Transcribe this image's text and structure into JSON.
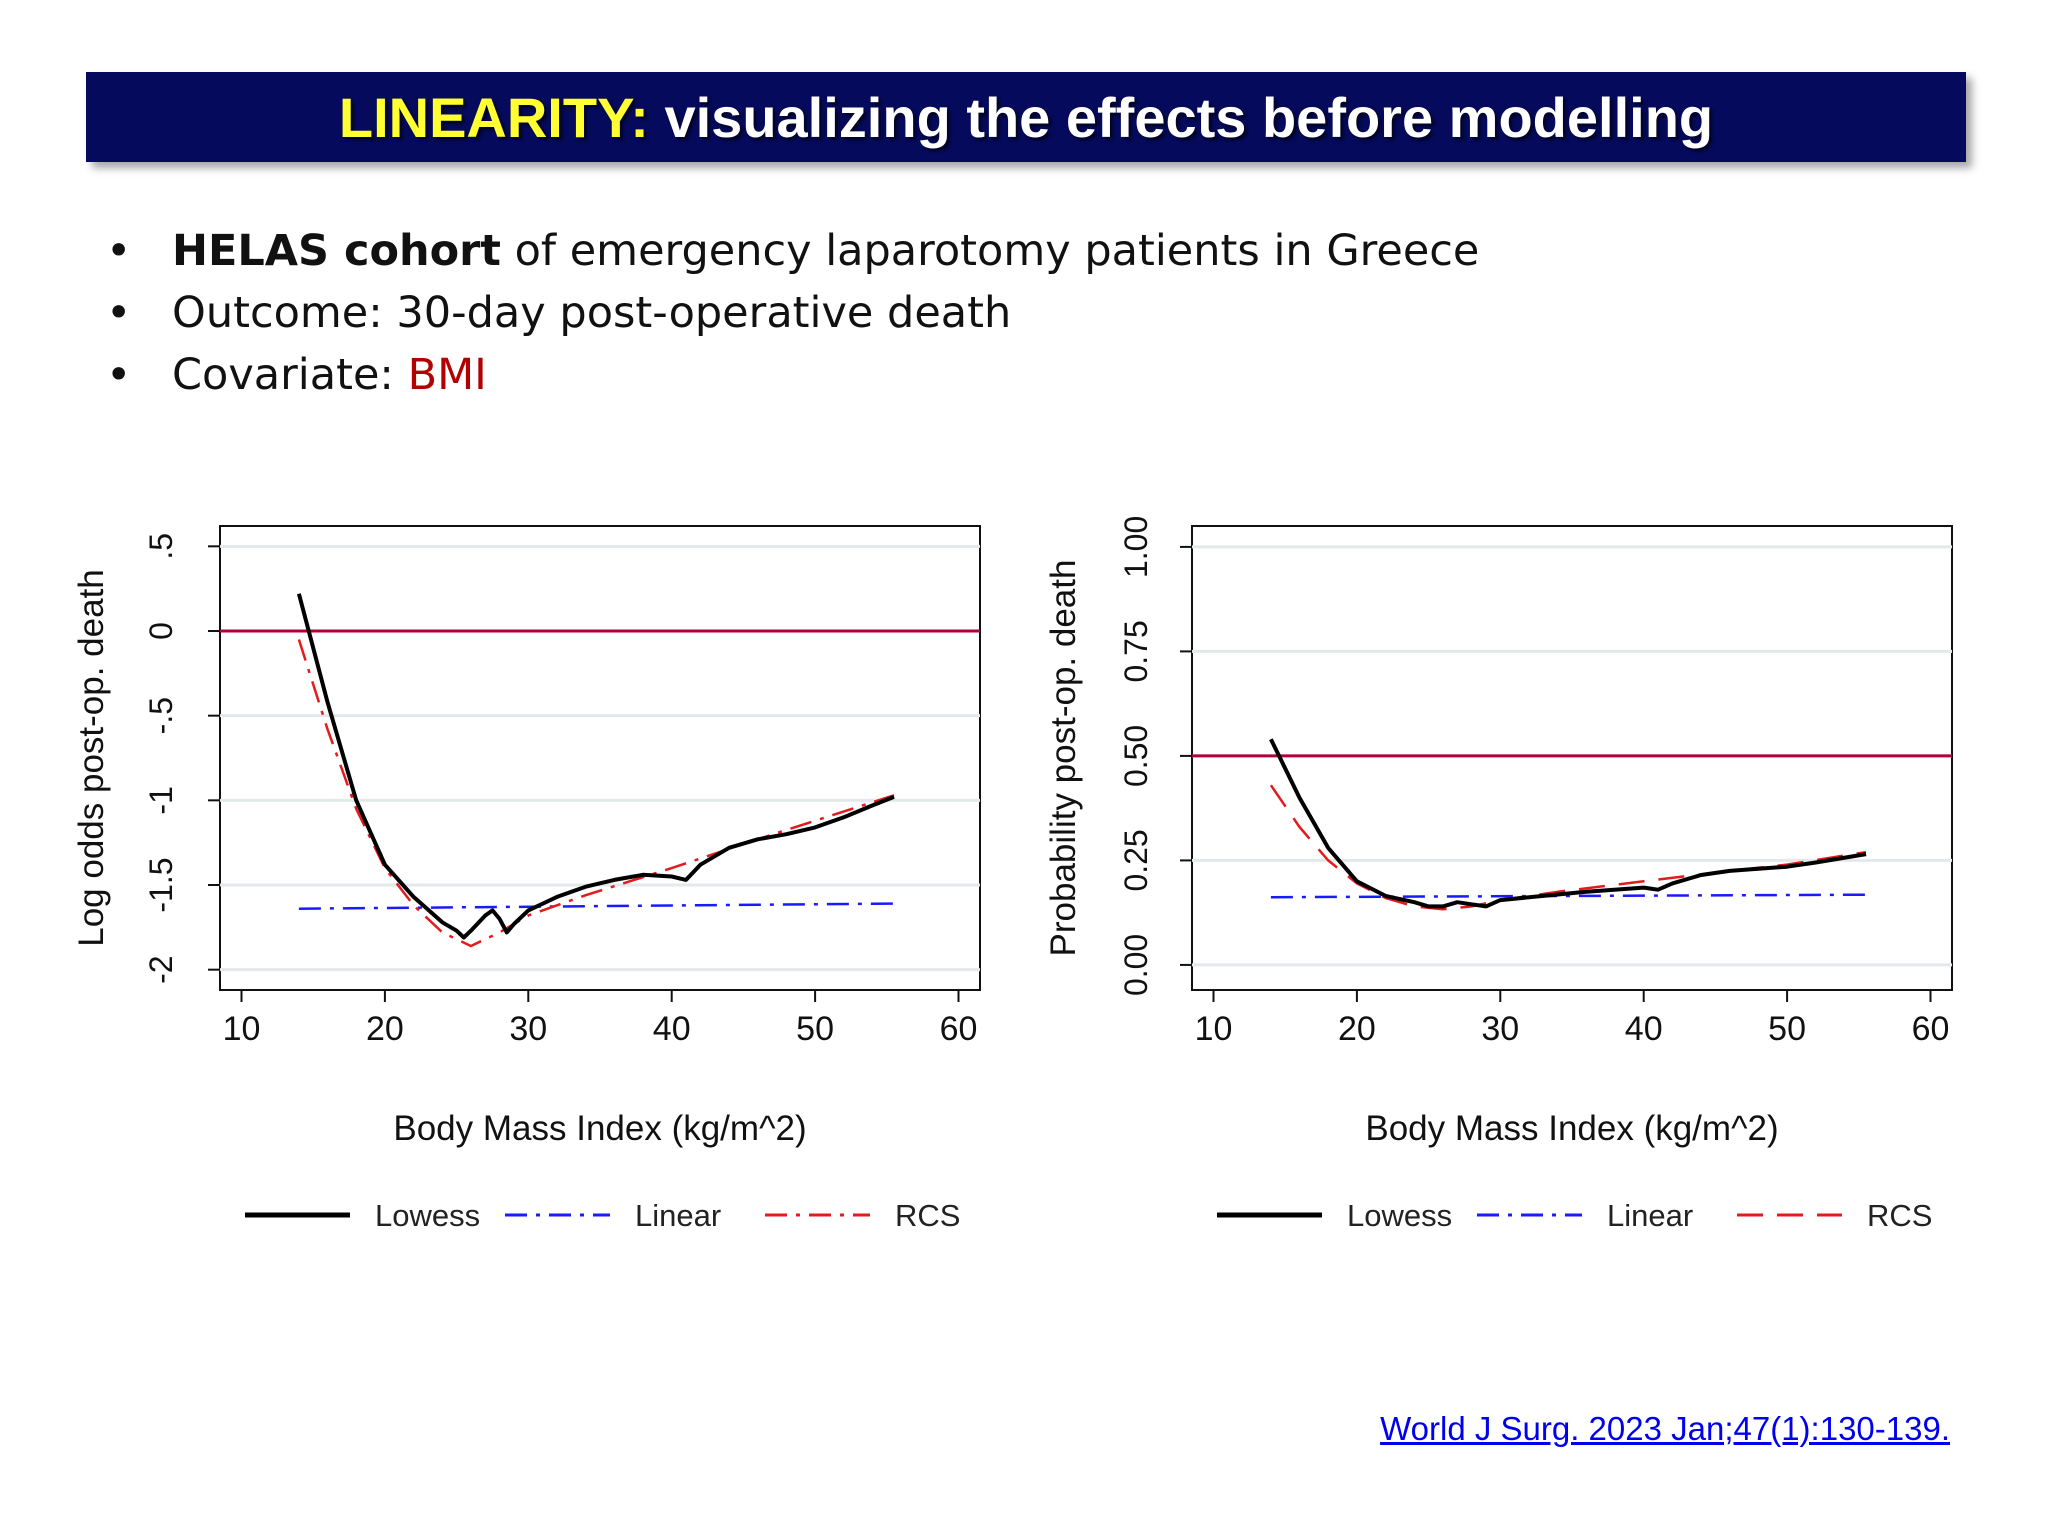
{
  "slide": {
    "title_accent": "LINEARITY:",
    "title_rest": " visualizing the effects before modelling",
    "bullets": {
      "b1_bold": "HELAS cohort",
      "b1_rest": " of emergency laparotomy patients in Greece",
      "b2": "Outcome: 30-day post-operative death",
      "b3_label": "Covariate: ",
      "b3_value": "BMI"
    },
    "bullet_glyph": "•",
    "citation": "World J Surg. 2023 Jan;47(1):130-139.",
    "colors": {
      "title_bg": "#050a5c",
      "accent": "#ffff33",
      "highlight": "#b30000",
      "link": "#0000ee"
    }
  },
  "chart_data": [
    {
      "type": "line",
      "xlabel": "Body Mass Index (kg/m^2)",
      "ylabel": "Log odds post-op. death",
      "xlim": [
        8.5,
        61.5
      ],
      "ylim": [
        -2.12,
        0.62
      ],
      "xticks": [
        10,
        20,
        30,
        40,
        50,
        60
      ],
      "xtick_labels": [
        "10",
        "20",
        "30",
        "40",
        "50",
        "60"
      ],
      "yticks": [
        -2,
        -1.5,
        -1,
        -0.5,
        0,
        0.5
      ],
      "ytick_labels": [
        "-2",
        "-1.5",
        "-1",
        "-.5",
        "0",
        ".5"
      ],
      "grid": true,
      "reference_line": {
        "y": 0,
        "color": "#b0003a"
      },
      "legend_position": "bottom",
      "series": [
        {
          "name": "Lowess",
          "color": "#000000",
          "style": "solid",
          "x": [
            14,
            16,
            18,
            20,
            22,
            24,
            25,
            25.5,
            26,
            27,
            27.5,
            28,
            28.5,
            29,
            30,
            32,
            34,
            36,
            38,
            40,
            41,
            42,
            44,
            46,
            48,
            50,
            52,
            54,
            55.5
          ],
          "y": [
            0.22,
            -0.42,
            -1.0,
            -1.38,
            -1.57,
            -1.72,
            -1.77,
            -1.81,
            -1.77,
            -1.68,
            -1.65,
            -1.7,
            -1.78,
            -1.73,
            -1.65,
            -1.57,
            -1.51,
            -1.47,
            -1.44,
            -1.45,
            -1.47,
            -1.38,
            -1.28,
            -1.23,
            -1.2,
            -1.16,
            -1.1,
            -1.03,
            -0.98
          ]
        },
        {
          "name": "Linear",
          "color": "#1a1aff",
          "style": "dashdot",
          "x": [
            14,
            55.5
          ],
          "y": [
            -1.64,
            -1.61
          ]
        },
        {
          "name": "RCS",
          "color": "#e41a1c",
          "style": "dashdot",
          "x": [
            14,
            16,
            18,
            20,
            22,
            24,
            26,
            28,
            30,
            34,
            40,
            46,
            50,
            55.5
          ],
          "y": [
            -0.05,
            -0.58,
            -1.05,
            -1.4,
            -1.62,
            -1.78,
            -1.86,
            -1.78,
            -1.68,
            -1.56,
            -1.4,
            -1.23,
            -1.12,
            -0.97
          ]
        }
      ]
    },
    {
      "type": "line",
      "xlabel": "Body Mass Index (kg/m^2)",
      "ylabel": "Probability post-op. death",
      "xlim": [
        8.5,
        61.5
      ],
      "ylim": [
        -0.06,
        1.05
      ],
      "xticks": [
        10,
        20,
        30,
        40,
        50,
        60
      ],
      "xtick_labels": [
        "10",
        "20",
        "30",
        "40",
        "50",
        "60"
      ],
      "yticks": [
        0,
        0.25,
        0.5,
        0.75,
        1.0
      ],
      "ytick_labels": [
        "0.00",
        "0.25",
        "0.50",
        "0.75",
        "1.00"
      ],
      "grid": true,
      "reference_line": {
        "y": 0.5,
        "color": "#b0003a"
      },
      "legend_position": "bottom",
      "series": [
        {
          "name": "Lowess",
          "color": "#000000",
          "style": "solid",
          "x": [
            14,
            16,
            18,
            20,
            22,
            24,
            25,
            26,
            27,
            28,
            29,
            30,
            33,
            36,
            40,
            41,
            42,
            44,
            46,
            48,
            50,
            52,
            55.5
          ],
          "y": [
            0.54,
            0.4,
            0.28,
            0.2,
            0.165,
            0.15,
            0.14,
            0.14,
            0.15,
            0.145,
            0.14,
            0.155,
            0.165,
            0.175,
            0.185,
            0.18,
            0.195,
            0.215,
            0.225,
            0.23,
            0.235,
            0.245,
            0.265
          ]
        },
        {
          "name": "Linear",
          "color": "#1a1aff",
          "style": "dashdot",
          "x": [
            14,
            55.5
          ],
          "y": [
            0.162,
            0.168
          ]
        },
        {
          "name": "RCS",
          "color": "#e41a1c",
          "style": "dashed",
          "x": [
            14,
            16,
            18,
            20,
            22,
            24,
            26,
            28,
            30,
            34,
            40,
            46,
            50,
            55.5
          ],
          "y": [
            0.43,
            0.33,
            0.25,
            0.195,
            0.16,
            0.14,
            0.133,
            0.14,
            0.155,
            0.175,
            0.2,
            0.225,
            0.24,
            0.27
          ]
        }
      ]
    }
  ]
}
